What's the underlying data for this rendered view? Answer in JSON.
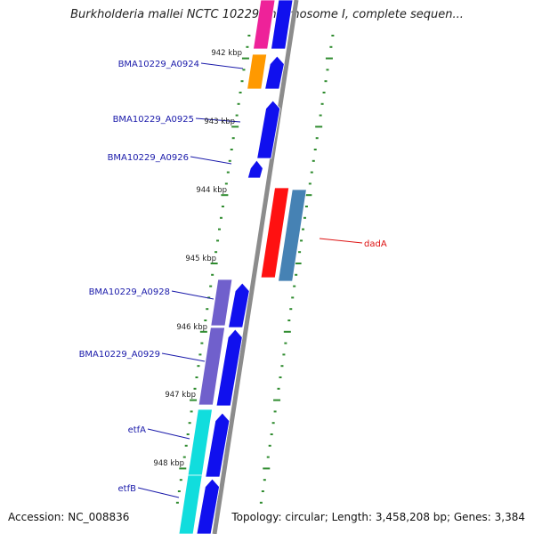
{
  "title": "Burkholderia mallei NCTC 10229 chromosome I, complete sequen...",
  "footer": {
    "accession": "Accession: NC_008836",
    "info": "Topology: circular; Length: 3,458,208 bp; Genes: 3,384"
  },
  "ruler": [
    {
      "label": "942 kbp"
    },
    {
      "label": "943 kbp"
    },
    {
      "label": "944 kbp"
    },
    {
      "label": "945 kbp"
    },
    {
      "label": "946 kbp"
    },
    {
      "label": "947 kbp"
    },
    {
      "label": "948 kbp"
    }
  ],
  "genes": [
    {
      "label": "BMA10229_A0924",
      "color": "#1a1aaa"
    },
    {
      "label": "BMA10229_A0925",
      "color": "#1a1aaa"
    },
    {
      "label": "BMA10229_A0926",
      "color": "#1a1aaa"
    },
    {
      "label": "dadA",
      "color": "#dd1111"
    },
    {
      "label": "BMA10229_A0928",
      "color": "#1a1aaa"
    },
    {
      "label": "BMA10229_A0929",
      "color": "#1a1aaa"
    },
    {
      "label": "etfA",
      "color": "#1a1aaa"
    },
    {
      "label": "etfB",
      "color": "#1a1aaa"
    }
  ],
  "colors": {
    "backbone": "#8c8c8c",
    "tick": "#2e8b2e",
    "cds": "#1010ee",
    "magenta": "#ee2299",
    "orange": "#ff9900",
    "red": "#ff1111",
    "steel": "#4682b4",
    "slate": "#7060cc",
    "cyan": "#11dddd"
  }
}
